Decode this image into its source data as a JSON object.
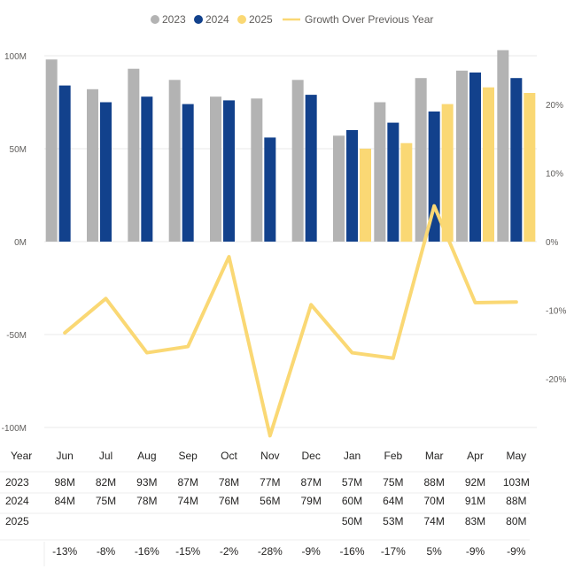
{
  "chart_data": {
    "type": "bar",
    "categories": [
      "Jun",
      "Jul",
      "Aug",
      "Sep",
      "Oct",
      "Nov",
      "Dec",
      "Jan",
      "Feb",
      "Mar",
      "Apr",
      "May"
    ],
    "series": [
      {
        "name": "2023",
        "color": "#b3b3b3",
        "values": [
          98,
          82,
          93,
          87,
          78,
          77,
          87,
          57,
          75,
          88,
          92,
          103
        ]
      },
      {
        "name": "2024",
        "color": "#12418c",
        "values": [
          84,
          75,
          78,
          74,
          76,
          56,
          79,
          60,
          64,
          70,
          91,
          88
        ]
      },
      {
        "name": "2025",
        "color": "#fad874",
        "values": [
          null,
          null,
          null,
          null,
          null,
          null,
          null,
          50,
          53,
          74,
          83,
          80
        ]
      }
    ],
    "line_series": {
      "name": "Growth Over Previous Year",
      "color": "#fad874",
      "values": [
        -13.3,
        -8.3,
        -16.2,
        -15.3,
        -2.2,
        -28.3,
        -9.2,
        -16.2,
        -17,
        5.2,
        -8.9,
        -8.8
      ],
      "axis": "right"
    },
    "left_axis": {
      "ticks": [
        "100M",
        "50M",
        "0M",
        "-50M",
        "-100M"
      ],
      "range": [
        -100,
        100
      ],
      "unit": "M"
    },
    "right_axis": {
      "ticks": [
        "20%",
        "10%",
        "0%",
        "-10%",
        "-20%"
      ],
      "range": [
        -27,
        27
      ]
    },
    "legend_position": "top-center",
    "grid": true,
    "table": {
      "header_label": "Year",
      "rows": [
        {
          "label": "2023",
          "cells": [
            "98M",
            "82M",
            "93M",
            "87M",
            "78M",
            "77M",
            "87M",
            "57M",
            "75M",
            "88M",
            "92M",
            "103M"
          ]
        },
        {
          "label": "2024",
          "cells": [
            "84M",
            "75M",
            "78M",
            "74M",
            "76M",
            "56M",
            "79M",
            "60M",
            "64M",
            "70M",
            "91M",
            "88M"
          ]
        },
        {
          "label": "2025",
          "cells": [
            "",
            "",
            "",
            "",
            "",
            "",
            "",
            "50M",
            "53M",
            "74M",
            "83M",
            "80M"
          ]
        },
        {
          "label": "",
          "cells": [
            "-13%",
            "-8%",
            "-16%",
            "-15%",
            "-2%",
            "-28%",
            "-9%",
            "-16%",
            "-17%",
            "5%",
            "-9%",
            "-9%"
          ]
        }
      ]
    }
  }
}
